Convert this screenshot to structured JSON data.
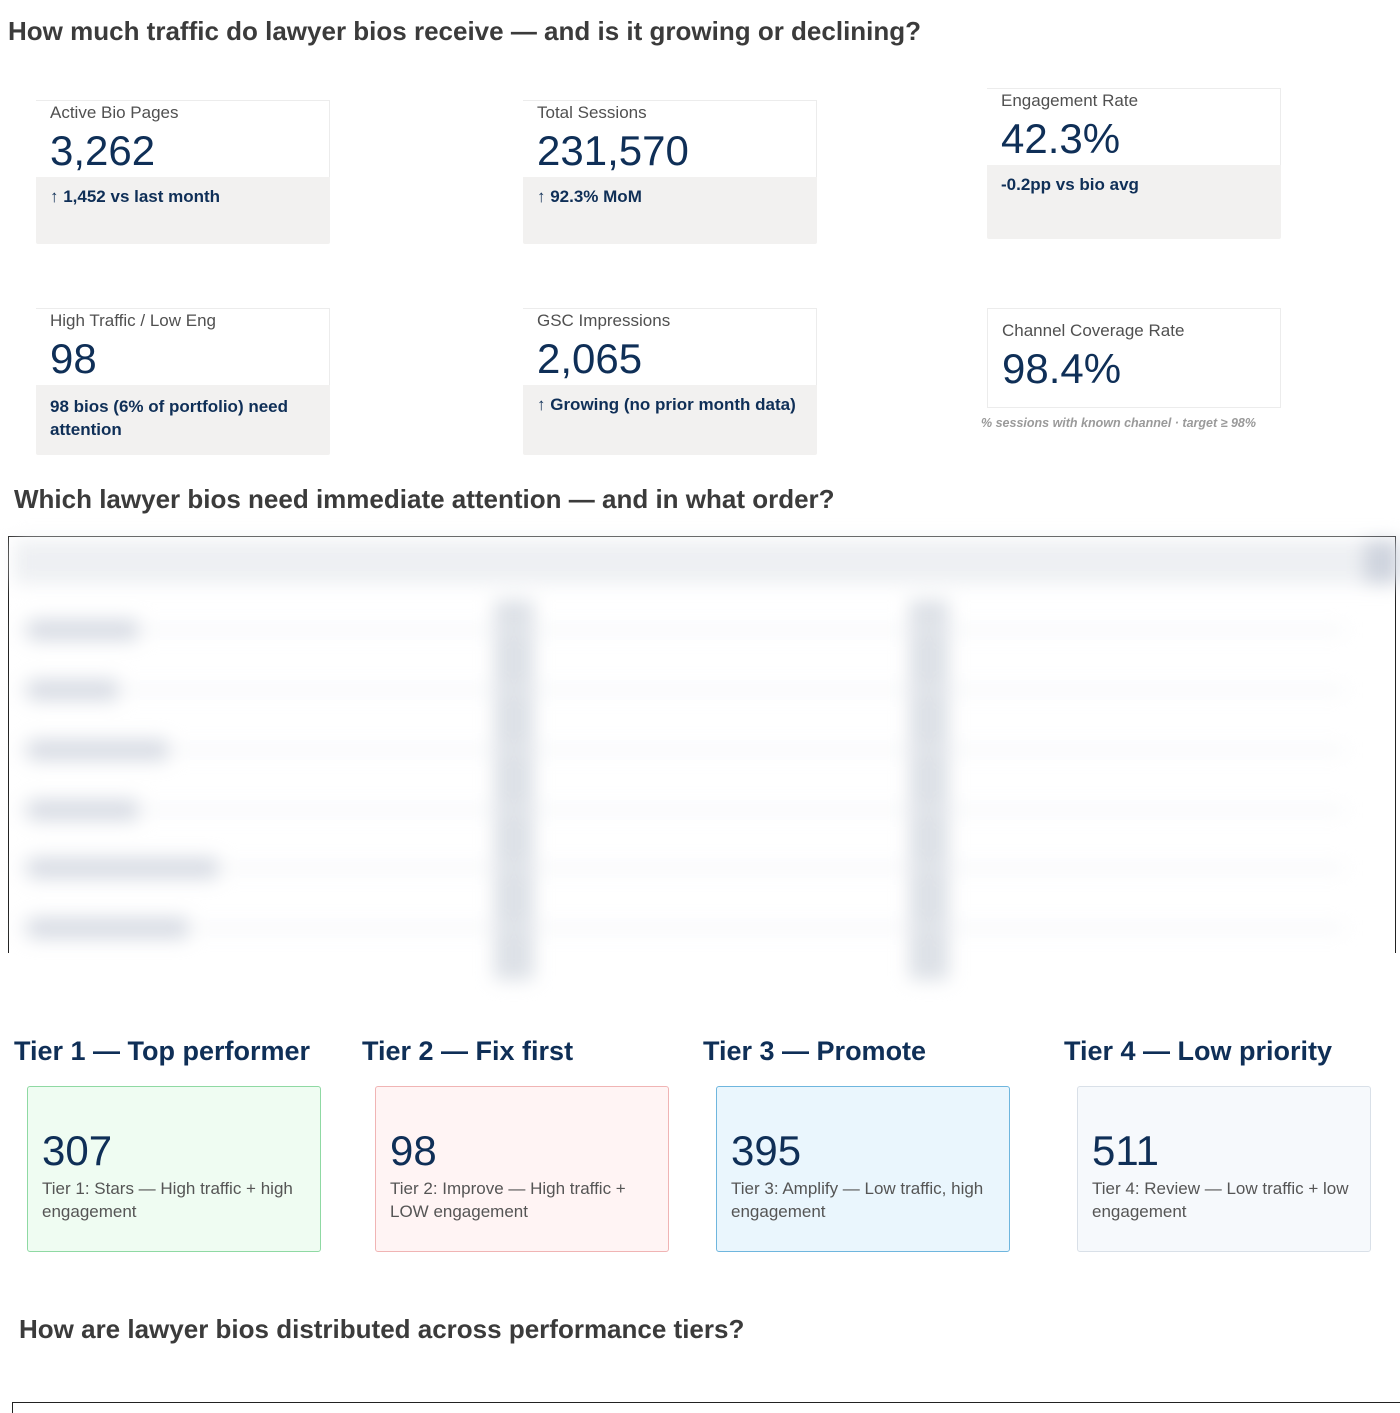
{
  "sections": {
    "traffic_title": "How much traffic do lawyer bios receive — and is it growing or declining?",
    "attention_title": "Which lawyer bios need immediate attention — and in what order?",
    "distribution_title": "How are lawyer bios distributed across performance tiers?"
  },
  "kpis": [
    {
      "label": "Active Bio Pages",
      "value": "3,262",
      "footer": "↑ 1,452 vs last month"
    },
    {
      "label": "Total Sessions",
      "value": "231,570",
      "footer": "↑ 92.3% MoM"
    },
    {
      "label": "Engagement Rate",
      "value": "42.3%",
      "footer": "-0.2pp vs bio avg"
    },
    {
      "label": "High Traffic / Low Eng",
      "value": "98",
      "footer": "98 bios (6% of portfolio) need attention"
    },
    {
      "label": "GSC Impressions",
      "value": "2,065",
      "footer": "↑ Growing (no prior month data)"
    },
    {
      "label": "Channel Coverage Rate",
      "value": "98.4%",
      "note": "% sessions with known channel · target ≥ 98%"
    }
  ],
  "tiers": [
    {
      "title": "Tier 1 — Top performer",
      "value": "307",
      "desc": "Tier 1: Stars — High traffic + high engagement",
      "bg": "#effcf2",
      "border": "#8fd9a3"
    },
    {
      "title": "Tier 2 — Fix first",
      "value": "98",
      "desc": "Tier 2: Improve — High traffic + LOW engagement",
      "bg": "#fff4f4",
      "border": "#f0b4b4"
    },
    {
      "title": "Tier 3 — Promote",
      "value": "395",
      "desc": "Tier 3: Amplify — Low traffic, high engagement",
      "bg": "#eaf6fd",
      "border": "#6fb6de"
    },
    {
      "title": "Tier 4 — Low priority",
      "value": "511",
      "desc": "Tier 4: Review — Low traffic + low engagement",
      "bg": "#f6f9fc",
      "border": "#d9e0e8"
    }
  ]
}
